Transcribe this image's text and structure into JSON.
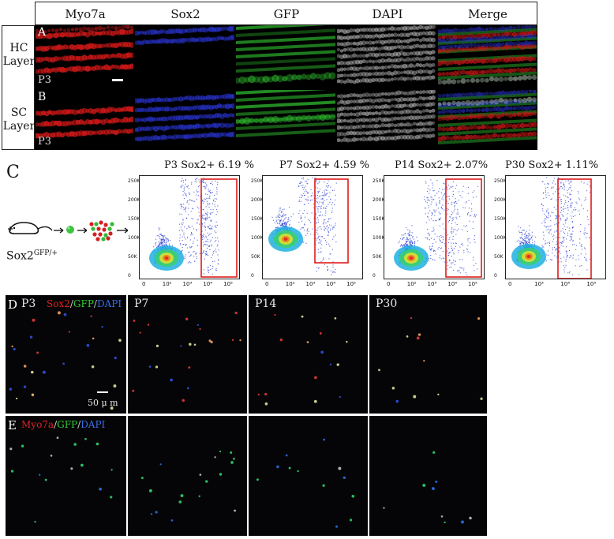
{
  "panelAB": {
    "columns": [
      "Myo7a",
      "Sox2",
      "GFP",
      "DAPI",
      "Merge"
    ],
    "rows": [
      {
        "letter": "A",
        "label_line1": "HC",
        "label_line2": "Layer",
        "age": "P3"
      },
      {
        "letter": "B",
        "label_line1": "SC",
        "label_line2": "Layer",
        "age": "P3"
      }
    ],
    "channel_colors": {
      "Myo7a": "#d01818",
      "Sox2": "#2a35d8",
      "GFP": "#2fbf2f",
      "DAPI": "#cfcfcf"
    }
  },
  "panelC": {
    "letter": "C",
    "mouse_label": "Sox2",
    "mouse_superscript": "GFP/+",
    "plots": [
      {
        "age": "P3",
        "gate_label": "Sox2+",
        "percent": "6.19 %",
        "gate_fraction": 6.19,
        "yticks": [
          "250K",
          "200K",
          "150K",
          "100K",
          "50K",
          "0"
        ],
        "xticks": [
          "0",
          "10²",
          "10³",
          "10⁴",
          "10⁵"
        ]
      },
      {
        "age": "P7",
        "gate_label": "Sox2+",
        "percent": "4.59 %",
        "gate_fraction": 4.59,
        "yticks": [
          "250K",
          "200K",
          "150K",
          "100K",
          "50K",
          "0"
        ],
        "xticks": [
          "0",
          "10²",
          "10³",
          "10⁴",
          "10⁵"
        ]
      },
      {
        "age": "P14",
        "gate_label": "Sox2+",
        "percent": "2.07%",
        "gate_fraction": 2.07,
        "yticks": [
          "250K",
          "200K",
          "150K",
          "100K",
          "50K",
          "0"
        ],
        "xticks": [
          "0",
          "10²",
          "10³",
          "10⁴",
          "10⁵"
        ]
      },
      {
        "age": "P30",
        "gate_label": "Sox2+",
        "percent": "1.11%",
        "gate_fraction": 1.11,
        "yticks": [
          "250K",
          "200K",
          "150K",
          "100K",
          "50K",
          "0"
        ],
        "xticks": [
          "0",
          "10³",
          "10⁴",
          "10⁵"
        ]
      }
    ],
    "gate_color": "#e01c1c"
  },
  "panelD": {
    "letter": "D",
    "stain": [
      {
        "text": "Sox2",
        "color": "#e02020"
      },
      {
        "text": "/",
        "color": "#cccccc"
      },
      {
        "text": "GFP",
        "color": "#2fcf2f"
      },
      {
        "text": "/",
        "color": "#cccccc"
      },
      {
        "text": "DAPI",
        "color": "#3a6fe8"
      }
    ],
    "ages": [
      "P3",
      "P7",
      "P14",
      "P30"
    ],
    "scalebar": "50 μ m"
  },
  "panelE": {
    "letter": "E",
    "stain": [
      {
        "text": "Myo7a",
        "color": "#e02020"
      },
      {
        "text": "/",
        "color": "#cccccc"
      },
      {
        "text": "GFP",
        "color": "#2fcf2f"
      },
      {
        "text": "/",
        "color": "#cccccc"
      },
      {
        "text": "DAPI",
        "color": "#3a6fe8"
      }
    ]
  }
}
